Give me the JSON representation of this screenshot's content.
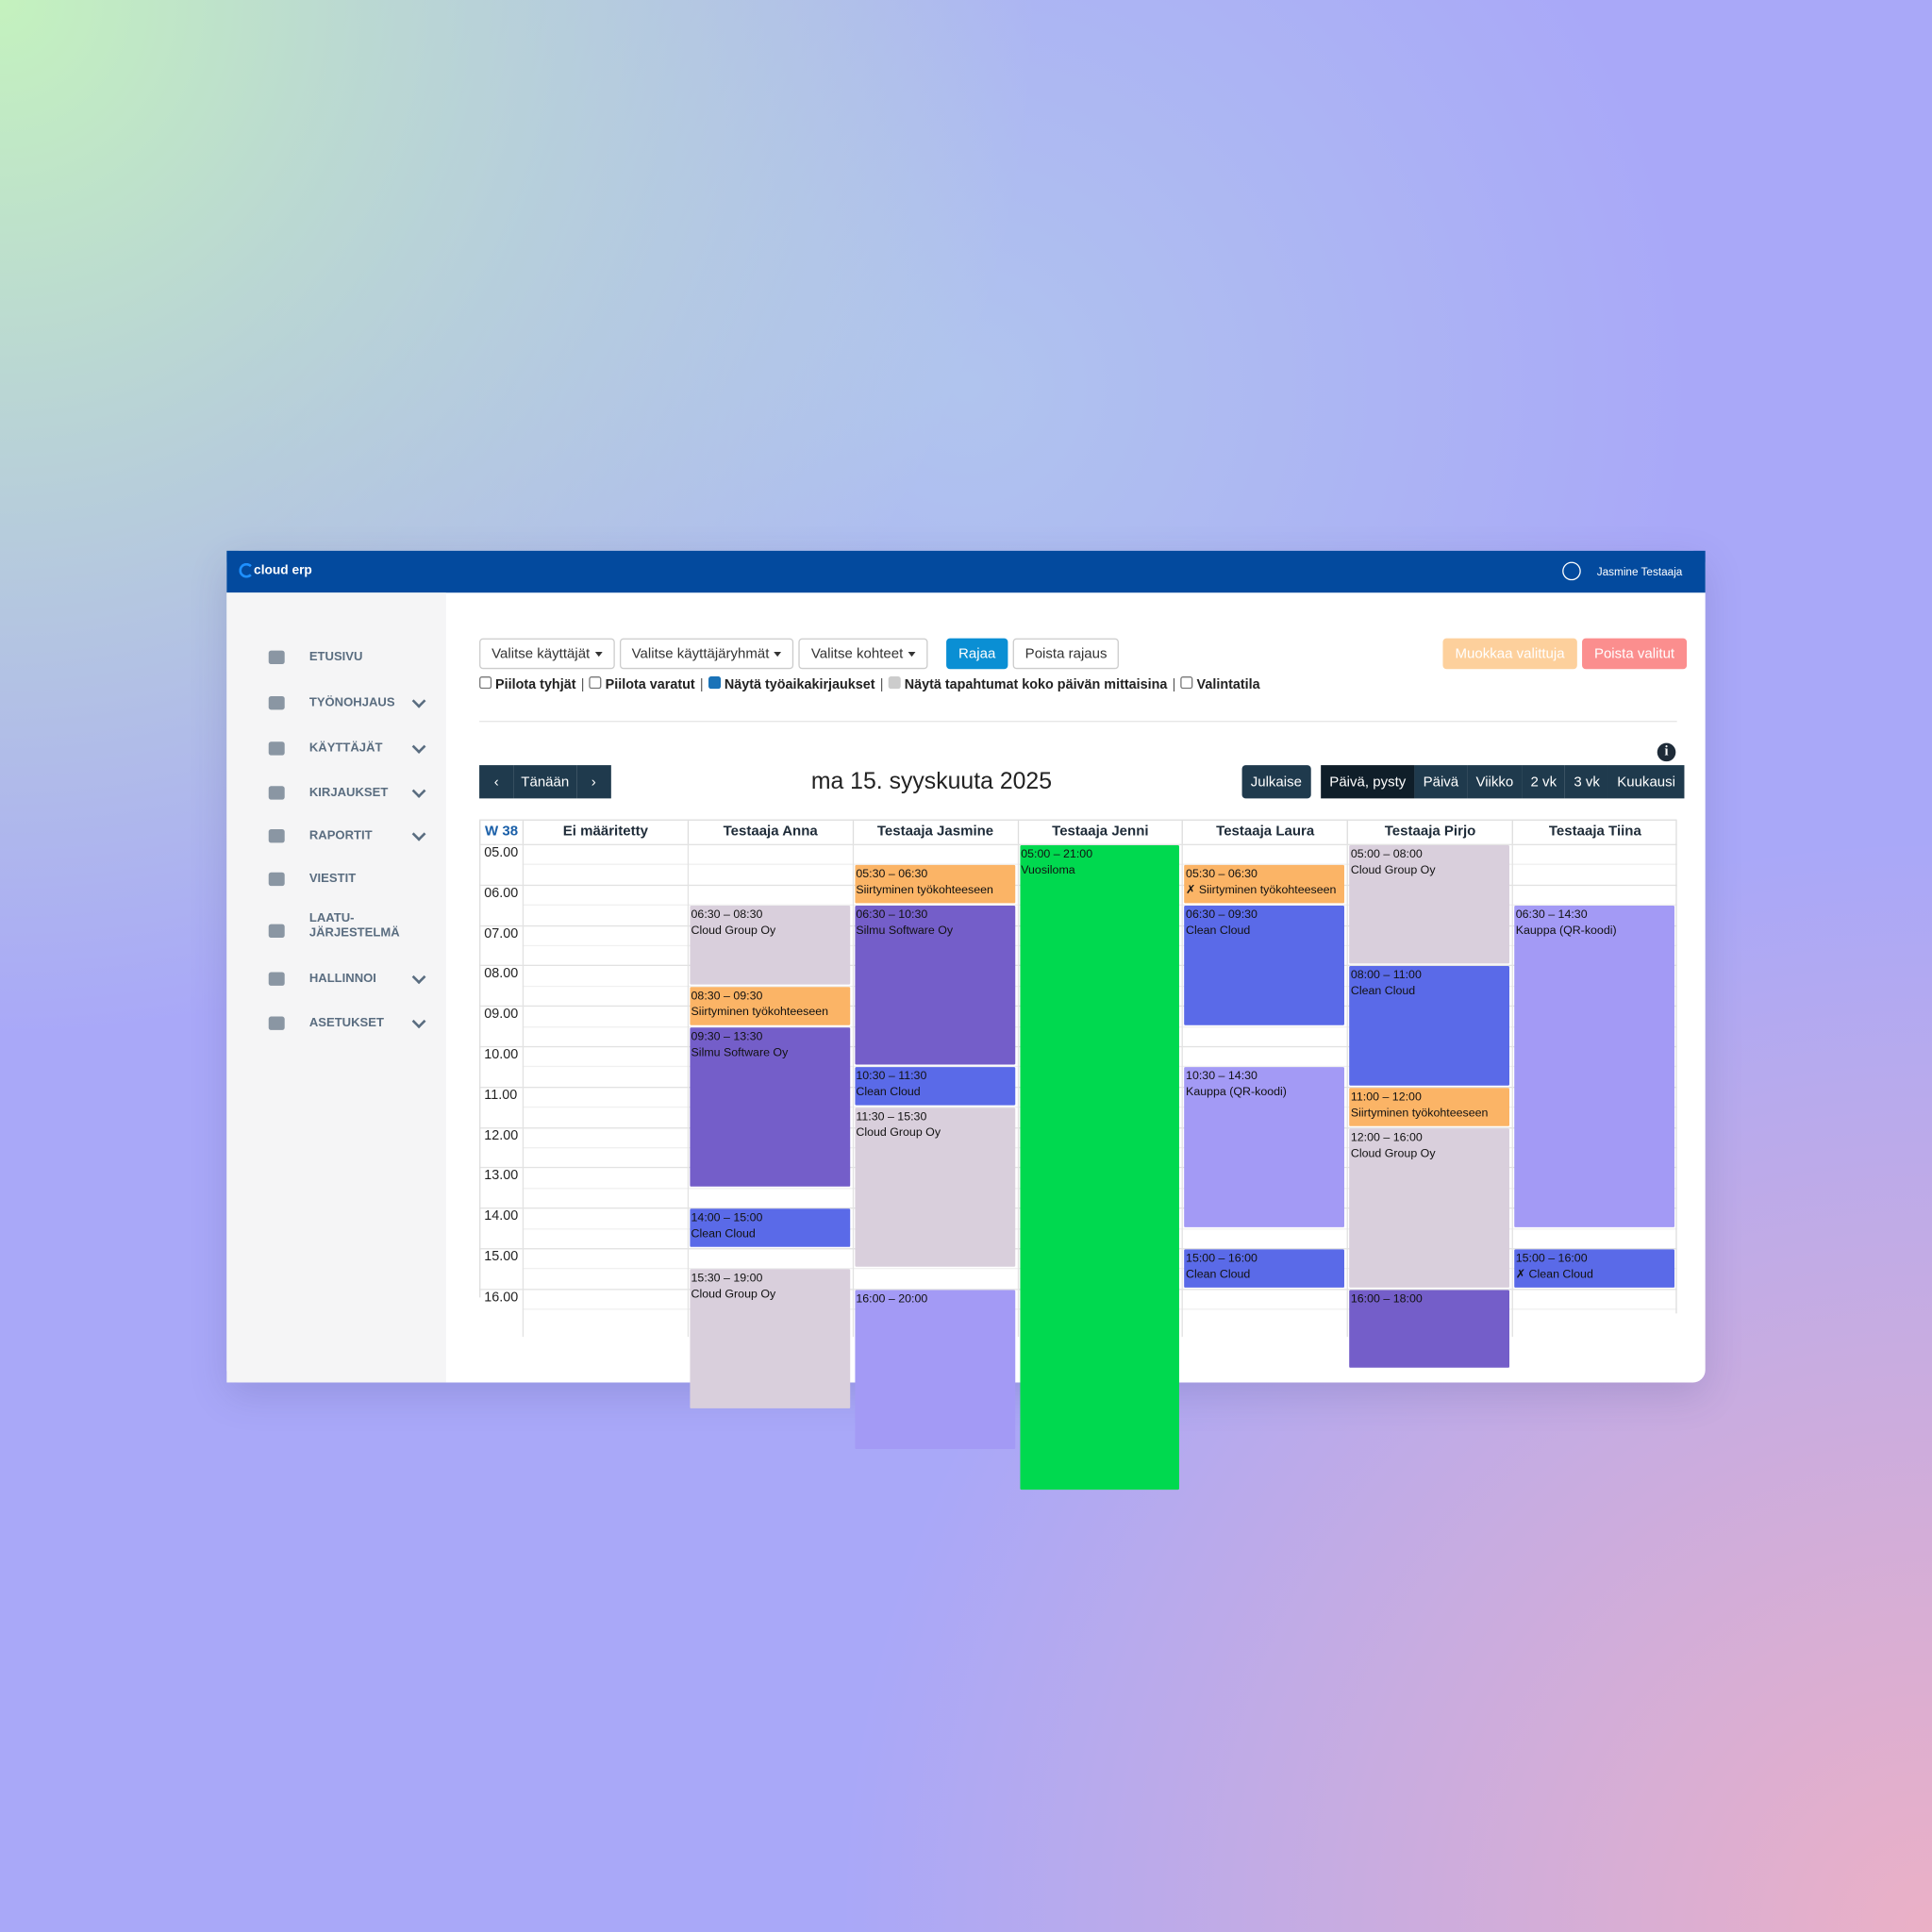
{
  "header": {
    "brand": "cloud erp",
    "user": "Jasmine Testaaja"
  },
  "sidebar": {
    "items": [
      {
        "label": "ETUSIVU",
        "expandable": false
      },
      {
        "label": "TYÖNOHJAUS",
        "expandable": true
      },
      {
        "label": "KÄYTTÄJÄT",
        "expandable": true
      },
      {
        "label": "KIRJAUKSET",
        "expandable": true
      },
      {
        "label": "RAPORTIT",
        "expandable": true
      },
      {
        "label": "VIESTIT",
        "expandable": false
      },
      {
        "label": "LAATU- JÄRJESTELMÄ",
        "expandable": false
      },
      {
        "label": "HALLINNOI",
        "expandable": true
      },
      {
        "label": "ASETUKSET",
        "expandable": true
      }
    ]
  },
  "filters": {
    "dropdowns": [
      "Valitse käyttäjät",
      "Valitse käyttäjäryhmät",
      "Valitse kohteet"
    ],
    "apply": "Rajaa",
    "clear": "Poista rajaus",
    "edit": "Muokkaa valittuja",
    "delete": "Poista valitut"
  },
  "options": {
    "separator": "|",
    "items": [
      {
        "label": "Piilota tyhjät",
        "checked": false,
        "disabled": false
      },
      {
        "label": "Piilota varatut",
        "checked": false,
        "disabled": false
      },
      {
        "label": "Näytä työaikakirjaukset",
        "checked": true,
        "disabled": false
      },
      {
        "label": "Näytä tapahtumat koko päivän mittaisina",
        "checked": true,
        "disabled": true
      },
      {
        "label": "Valintatila",
        "checked": false,
        "disabled": false
      }
    ]
  },
  "navigation": {
    "today": "Tänään",
    "date": "ma 15. syyskuuta 2025",
    "publish": "Julkaise",
    "views": [
      "Päivä, pysty",
      "Päivä",
      "Viikko",
      "2 vk",
      "3 vk",
      "Kuukausi"
    ],
    "active_view": 0
  },
  "calendar": {
    "week": "W 38",
    "times": [
      "05.00",
      "06.00",
      "07.00",
      "08.00",
      "09.00",
      "10.00",
      "11.00",
      "12.00",
      "13.00",
      "14.00",
      "15.00",
      "16.00"
    ],
    "columns": [
      {
        "name": "Ei määritetty",
        "events": []
      },
      {
        "name": "Testaaja Anna",
        "events": [
          {
            "time": "06:30 – 08:30",
            "label": "Cloud Group Oy",
            "color": "#d9cfdc"
          },
          {
            "time": "08:30 – 09:30",
            "label": "Siirtyminen työkohteeseen",
            "color": "#fbb466"
          },
          {
            "time": "09:30 – 13:30",
            "label": "Silmu Software Oy",
            "color": "#745ec9"
          },
          {
            "time": "14:00 – 15:00",
            "label": "Clean Cloud",
            "color": "#5a6ae8"
          },
          {
            "time": "15:30 – 19:00",
            "label": "Cloud Group Oy",
            "color": "#d9cfdc"
          }
        ]
      },
      {
        "name": "Testaaja Jasmine",
        "events": [
          {
            "time": "05:30 – 06:30",
            "label": "Siirtyminen työkohteeseen",
            "color": "#fbb466"
          },
          {
            "time": "06:30 – 10:30",
            "label": "Silmu Software Oy",
            "color": "#745ec9"
          },
          {
            "time": "10:30 – 11:30",
            "label": "Clean Cloud",
            "color": "#5a6ae8"
          },
          {
            "time": "11:30 – 15:30",
            "label": "Cloud Group Oy",
            "color": "#d9cfdc"
          },
          {
            "time": "16:00 – 20:00",
            "color": "#a39af5"
          }
        ]
      },
      {
        "name": "Testaaja Jenni",
        "events": [
          {
            "time": "05:00 – 21:00",
            "label": "Vuosiloma",
            "color": "#00d94f"
          }
        ]
      },
      {
        "name": "Testaaja Laura",
        "events": [
          {
            "time": "05:30 – 06:30",
            "label": "✗ Siirtyminen työkohteeseen",
            "color": "#fbb466"
          },
          {
            "time": "06:30 – 09:30",
            "label": "Clean Cloud",
            "color": "#5a6ae8"
          },
          {
            "time": "10:30 – 14:30",
            "label": "Kauppa (QR-koodi)",
            "color": "#a39af5"
          },
          {
            "time": "15:00 – 16:00",
            "label": "Clean Cloud",
            "color": "#5a6ae8"
          }
        ]
      },
      {
        "name": "Testaaja Pirjo",
        "events": [
          {
            "time": "05:00 – 08:00",
            "label": "Cloud Group Oy",
            "color": "#d9cfdc"
          },
          {
            "time": "08:00 – 11:00",
            "label": "Clean Cloud",
            "color": "#5a6ae8"
          },
          {
            "time": "11:00 – 12:00",
            "label": "Siirtyminen työkohteeseen",
            "color": "#fbb466"
          },
          {
            "time": "12:00 – 16:00",
            "label": "Cloud Group Oy",
            "color": "#d9cfdc"
          },
          {
            "time": "16:00 – 18:00",
            "color": "#745ec9"
          }
        ]
      },
      {
        "name": "Testaaja Tiina",
        "events": [
          {
            "time": "06:30 – 14:30",
            "label": "Kauppa (QR-koodi)",
            "color": "#a39af5"
          },
          {
            "time": "15:00 – 16:00",
            "label": "✗ Clean Cloud",
            "color": "#5a6ae8"
          }
        ]
      }
    ]
  }
}
